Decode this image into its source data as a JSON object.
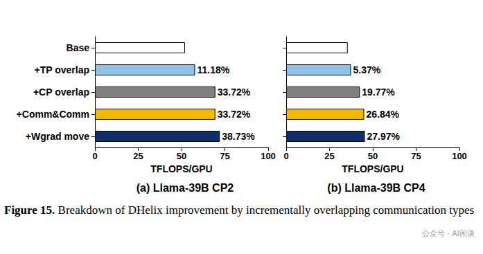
{
  "legend": "top",
  "chart_data": [
    {
      "type": "bar",
      "orientation": "horizontal",
      "title": "(a) Llama-39B CP2",
      "xlabel": "TFLOPS/GPU",
      "categories": [
        "Base",
        "+TP overlap",
        "+CP overlap",
        "+Comm&Comm",
        "+Wgrad move"
      ],
      "values": [
        52.0,
        57.8,
        69.5,
        69.5,
        72.1
      ],
      "bar_labels": [
        null,
        "11.18%",
        "33.72%",
        "33.72%",
        "38.73%"
      ],
      "colors": [
        "#ffffff",
        "#8ec4e8",
        "#808080",
        "#f5b800",
        "#0d2f6b"
      ],
      "xlim": [
        0,
        100
      ],
      "xticks": [
        0,
        25,
        50,
        75,
        100
      ],
      "grid": false
    },
    {
      "type": "bar",
      "orientation": "horizontal",
      "title": "(b) Llama-39B CP4",
      "xlabel": "TFLOPS/GPU",
      "categories": [
        "Base",
        "+TP overlap",
        "+CP overlap",
        "+Comm&Comm",
        "+Wgrad move"
      ],
      "values": [
        35.5,
        37.4,
        42.5,
        45.0,
        45.4
      ],
      "bar_labels": [
        null,
        "5.37%",
        "19.77%",
        "26.84%",
        "27.97%"
      ],
      "colors": [
        "#ffffff",
        "#8ec4e8",
        "#808080",
        "#f5b800",
        "#0d2f6b"
      ],
      "xlim": [
        0,
        100
      ],
      "xticks": [
        0,
        25,
        50,
        75,
        100
      ],
      "grid": false,
      "tick_labels": "x"
    }
  ],
  "caption_label": "Figure 15.",
  "caption": "Breakdown of DHelix improvement by incrementally overlapping communication types",
  "watermark": "公众号 · AI闲谈"
}
